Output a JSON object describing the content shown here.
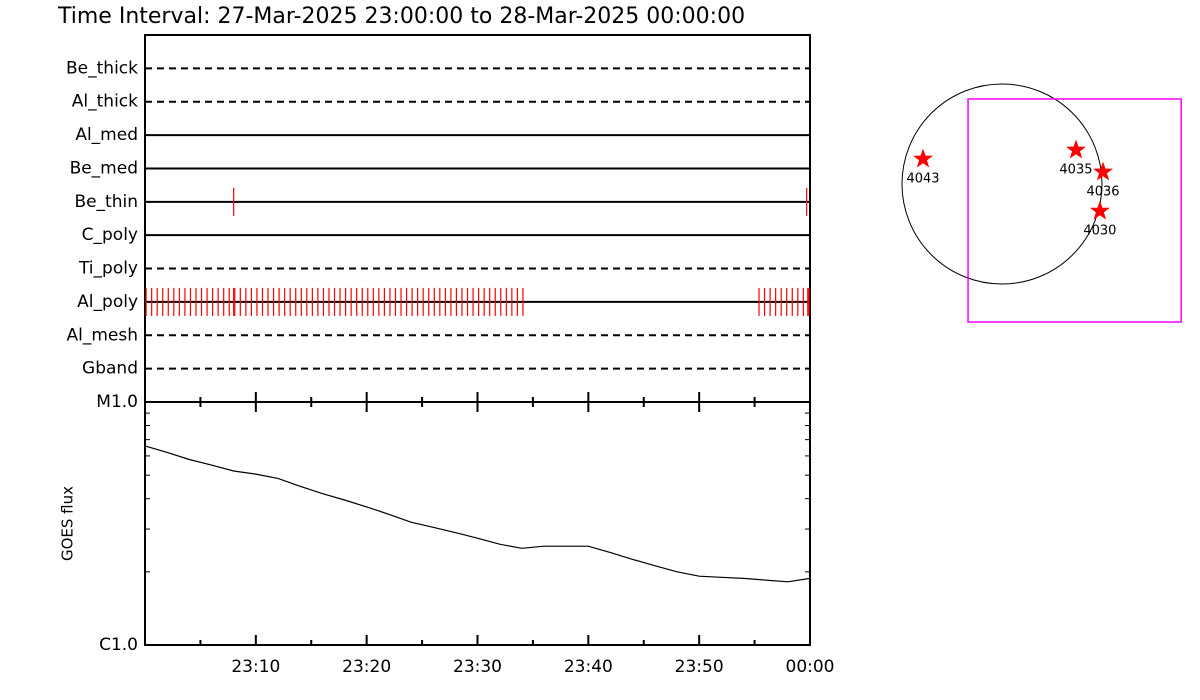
{
  "chart_data": [
    {
      "type": "timeline",
      "title": "Time Interval: 27-Mar-2025 23:00:00 to 28-Mar-2025 00:00:00",
      "xlim": [
        0,
        60
      ],
      "event_color": "#ff0000",
      "series": [
        {
          "name": "Be_thick",
          "style": "dashed",
          "events": []
        },
        {
          "name": "Al_thick",
          "style": "dashed",
          "events": []
        },
        {
          "name": "Al_med",
          "style": "solid",
          "events": []
        },
        {
          "name": "Be_med",
          "style": "solid",
          "events": []
        },
        {
          "name": "Be_thin",
          "style": "solid",
          "events": [
            8.0,
            59.7
          ]
        },
        {
          "name": "C_poly",
          "style": "solid",
          "events": []
        },
        {
          "name": "Ti_poly",
          "style": "dashed",
          "events": []
        },
        {
          "name": "Al_poly",
          "style": "solid",
          "events": [
            0.1,
            0.6,
            1.1,
            1.6,
            2.1,
            2.6,
            3.1,
            3.6,
            4.1,
            4.6,
            5.1,
            5.6,
            6.1,
            6.6,
            7.1,
            7.6,
            8.0,
            8.1,
            8.6,
            9.1,
            9.6,
            10.1,
            10.6,
            11.1,
            11.6,
            12.1,
            12.6,
            13.1,
            13.6,
            14.1,
            14.6,
            15.1,
            15.6,
            16.1,
            16.6,
            17.1,
            17.6,
            18.1,
            18.6,
            19.1,
            19.6,
            20.1,
            20.6,
            21.1,
            21.6,
            22.1,
            22.6,
            23.1,
            23.6,
            24.1,
            24.6,
            25.1,
            25.6,
            26.1,
            26.6,
            27.1,
            27.6,
            28.1,
            28.6,
            29.1,
            29.6,
            30.1,
            30.6,
            31.1,
            31.6,
            32.1,
            32.6,
            33.1,
            33.6,
            34.1,
            55.4,
            55.9,
            56.4,
            56.9,
            57.4,
            57.9,
            58.4,
            58.9,
            59.4,
            59.8,
            59.9
          ]
        },
        {
          "name": "Al_mesh",
          "style": "dashed",
          "events": []
        },
        {
          "name": "Gband",
          "style": "dashed",
          "events": []
        }
      ]
    },
    {
      "type": "line",
      "ylabel": "GOES flux",
      "color": "#000000",
      "log_y": true,
      "xlim": [
        0,
        60
      ],
      "xticks": [
        {
          "value": 10,
          "label": "23:10"
        },
        {
          "value": 20,
          "label": "23:20"
        },
        {
          "value": 30,
          "label": "23:30"
        },
        {
          "value": 40,
          "label": "23:40"
        },
        {
          "value": 50,
          "label": "23:50"
        },
        {
          "value": 60,
          "label": "00:00"
        }
      ],
      "xminor": [
        5,
        15,
        25,
        35,
        45,
        55
      ],
      "ylim": [
        1e-06,
        1e-05
      ],
      "yticks": [
        {
          "value": 1e-05,
          "label": "M1.0"
        },
        {
          "value": 1e-06,
          "label": "C1.0"
        }
      ],
      "yminor": [
        2e-06,
        3e-06,
        4e-06,
        5e-06,
        6e-06,
        7e-06,
        8e-06,
        9e-06
      ],
      "x": [
        0,
        2,
        4,
        6,
        8,
        10,
        12,
        14,
        16,
        18,
        20,
        22,
        24,
        26,
        28,
        30,
        32,
        34,
        36,
        38,
        40,
        42,
        44,
        46,
        48,
        50,
        52,
        54,
        56,
        58,
        60
      ],
      "values": [
        6.6e-06,
        6.2e-06,
        5.8e-06,
        5.5e-06,
        5.2e-06,
        5.05e-06,
        4.85e-06,
        4.5e-06,
        4.2e-06,
        3.95e-06,
        3.7e-06,
        3.45e-06,
        3.2e-06,
        3.05e-06,
        2.9e-06,
        2.75e-06,
        2.6e-06,
        2.5e-06,
        2.55e-06,
        2.55e-06,
        2.55e-06,
        2.4e-06,
        2.25e-06,
        2.12e-06,
        2e-06,
        1.92e-06,
        1.9e-06,
        1.88e-06,
        1.85e-06,
        1.82e-06,
        1.88e-06
      ]
    },
    {
      "type": "scatter",
      "color": "#ff0000",
      "sun_radius": 960,
      "fov_xlim": [
        -326,
        1720
      ],
      "fov_ylim": [
        -1325,
        816
      ],
      "fov_color": "#ff00ff",
      "labels": [
        "4043",
        "4035",
        "4036",
        "4030"
      ],
      "x": [
        -758,
        710,
        970,
        940
      ],
      "y": [
        240,
        326,
        115,
        -260
      ]
    }
  ]
}
